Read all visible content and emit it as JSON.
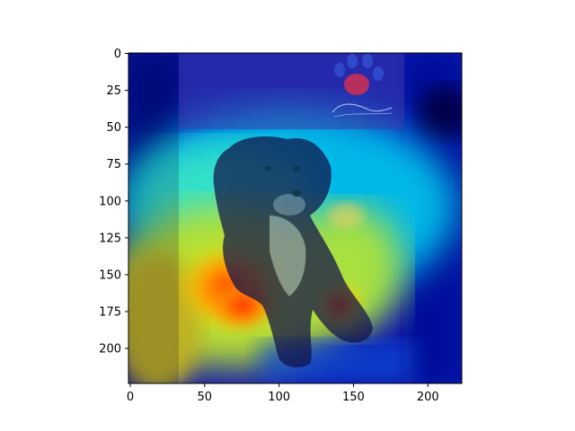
{
  "image": {
    "description_kind": "Grad-CAM style heatmap overlay on a puppy photograph",
    "colormap": "jet",
    "colors": {
      "cold": "#00008b",
      "cool": "#0000ff",
      "mid": "#00e5ff",
      "warm": "#ffff00",
      "hot": "#ff0000"
    }
  },
  "axes": {
    "x_range": [
      0,
      224
    ],
    "y_range": [
      0,
      224
    ],
    "y_inverted": true,
    "x_ticks": [
      "0",
      "50",
      "100",
      "150",
      "200"
    ],
    "y_ticks": [
      "0",
      "25",
      "50",
      "75",
      "100",
      "125",
      "150",
      "175",
      "200"
    ]
  }
}
